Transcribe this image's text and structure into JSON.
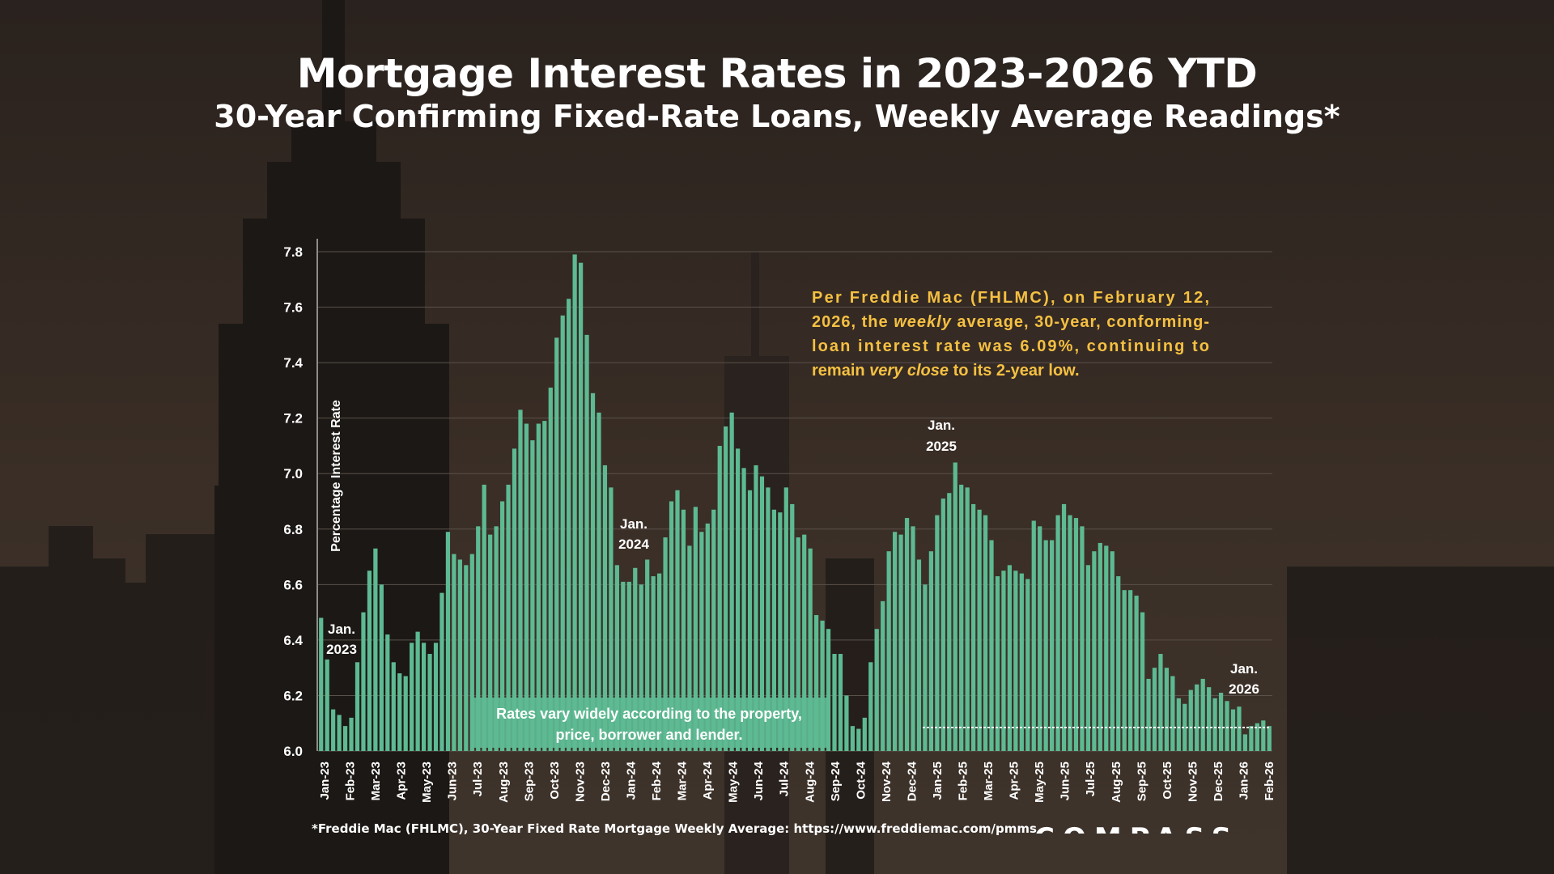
{
  "colors": {
    "background": "#2b2420",
    "bar": "#5dba92",
    "title": "#ffffff",
    "note_text": "#f5c042",
    "grid": "#5a514a",
    "rates_box": "#5dba92"
  },
  "chart_data": {
    "type": "bar",
    "title": "Mortgage Interest Rates in 2023-2026 YTD",
    "subtitle": "30-Year Confirming Fixed-Rate Loans, Weekly Average Readings*",
    "ylabel": "Percentage Interest Rate",
    "xlabel": "",
    "ylim": [
      6.0,
      7.8
    ],
    "yticks": [
      "6.0",
      "6.2",
      "6.4",
      "6.6",
      "6.8",
      "7.0",
      "7.2",
      "7.4",
      "7.6",
      "7.8"
    ],
    "grid": true,
    "month_labels": [
      "Jan-23",
      "Feb-23",
      "Mar-23",
      "Apr-23",
      "May-23",
      "Jun-23",
      "Jul-23",
      "Aug-23",
      "Sep-23",
      "Oct-23",
      "Nov-23",
      "Dec-23",
      "Jan-24",
      "Feb-24",
      "Mar-24",
      "Apr-24",
      "May-24",
      "Jun-24",
      "Jul-24",
      "Aug-24",
      "Sep-24",
      "Oct-24",
      "Nov-24",
      "Dec-24",
      "Jan-25",
      "Feb-25",
      "Mar-25",
      "Apr-25",
      "May-25",
      "Jun-25",
      "Jul-25",
      "Aug-25",
      "Sep-25",
      "Oct-25",
      "Nov-25",
      "Dec-25",
      "Jan-26",
      "Feb-26"
    ],
    "series": [
      {
        "values": [
          6.48,
          6.33,
          6.15,
          6.13,
          6.09,
          6.12,
          6.32,
          6.5,
          6.65,
          6.73,
          6.6,
          6.42,
          6.32,
          6.28,
          6.27,
          6.39,
          6.43,
          6.39,
          6.35,
          6.39,
          6.57,
          6.79,
          6.71,
          6.69,
          6.67,
          6.71,
          6.81,
          6.96,
          6.78,
          6.81,
          6.9,
          6.96,
          7.09,
          7.23,
          7.18,
          7.12,
          7.18,
          7.19,
          7.31,
          7.49,
          7.57,
          7.63,
          7.79,
          7.76,
          7.5,
          7.29,
          7.22,
          7.03,
          6.95,
          6.67,
          6.61,
          6.61,
          6.66,
          6.6,
          6.69,
          6.63,
          6.64,
          6.77,
          6.9,
          6.94,
          6.87,
          6.74,
          6.88,
          6.79,
          6.82,
          6.87,
          7.1,
          7.17,
          7.22,
          7.09,
          7.02,
          6.94,
          7.03,
          6.99,
          6.95,
          6.87,
          6.86,
          6.95,
          6.89,
          6.77,
          6.78,
          6.73,
          6.49,
          6.47,
          6.44,
          6.35,
          6.35,
          6.2,
          6.09,
          6.08,
          6.12,
          6.32,
          6.44,
          6.54,
          6.72,
          6.79,
          6.78,
          6.84,
          6.81,
          6.69,
          6.6,
          6.72,
          6.85,
          6.91,
          6.93,
          7.04,
          6.96,
          6.95,
          6.89,
          6.87,
          6.85,
          6.76,
          6.63,
          6.65,
          6.67,
          6.65,
          6.64,
          6.62,
          6.83,
          6.81,
          6.76,
          6.76,
          6.85,
          6.89,
          6.85,
          6.84,
          6.81,
          6.67,
          6.72,
          6.75,
          6.74,
          6.72,
          6.63,
          6.58,
          6.58,
          6.56,
          6.5,
          6.26,
          6.3,
          6.35,
          6.3,
          6.27,
          6.19,
          6.17,
          6.22,
          6.24,
          6.26,
          6.23,
          6.19,
          6.21,
          6.18,
          6.15,
          6.16,
          6.06,
          6.09,
          6.1,
          6.11,
          6.09
        ]
      }
    ],
    "annotations": [
      {
        "line1": "Jan.",
        "line2": "2023"
      },
      {
        "line1": "Jan.",
        "line2": "2024"
      },
      {
        "line1": "Jan.",
        "line2": "2025"
      },
      {
        "line1": "Jan.",
        "line2": "2026"
      }
    ],
    "note": {
      "line1": "Per Freddie Mac (FHLMC), on February 12,",
      "line2a": "2026, the ",
      "line2em": "weekly",
      "line2b": " average, 30-year, conforming-",
      "line3": "loan interest rate was 6.09%, continuing to",
      "line4a": "remain ",
      "line4em": "very close",
      "line4b": " to its 2-year low."
    },
    "rates_box": {
      "line1": "Rates vary widely according to the property,",
      "line2": "price, borrower and lender."
    }
  },
  "footer": {
    "source": "*Freddie Mac (FHLMC), 30-Year Fixed Rate Mortgage Weekly Average:  https://www.freddiemac.com/pmms",
    "logo": "COMPASS"
  }
}
